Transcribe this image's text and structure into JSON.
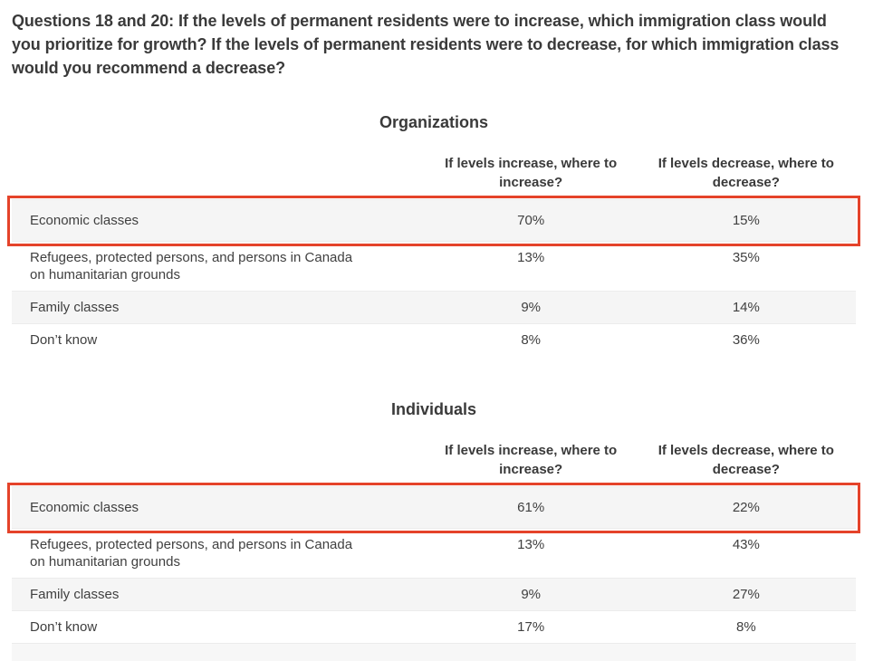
{
  "question_heading": "Questions 18 and 20: If the levels of permanent residents were to increase, which immigration class would you prioritize for growth? If the levels of permanent residents were to decrease, for which immigration class would you recommend a decrease?",
  "column_headers": {
    "increase": "If levels increase, where to increase?",
    "decrease": "If levels decrease, where to decrease?"
  },
  "tables": [
    {
      "title": "Organizations",
      "rows": [
        {
          "label": "Economic classes",
          "increase": "70%",
          "decrease": "15%",
          "highlighted": true
        },
        {
          "label": "Refugees, protected persons, and persons in Canada on humanitarian grounds",
          "increase": "13%",
          "decrease": "35%",
          "highlighted": false
        },
        {
          "label": "Family classes",
          "increase": "9%",
          "decrease": "14%",
          "highlighted": false
        },
        {
          "label": "Don’t know",
          "increase": "8%",
          "decrease": "36%",
          "highlighted": false
        }
      ]
    },
    {
      "title": "Individuals",
      "rows": [
        {
          "label": "Economic classes",
          "increase": "61%",
          "decrease": "22%",
          "highlighted": true
        },
        {
          "label": "Refugees, protected persons, and persons in Canada on humanitarian grounds",
          "increase": "13%",
          "decrease": "43%",
          "highlighted": false
        },
        {
          "label": "Family classes",
          "increase": "9%",
          "decrease": "27%",
          "highlighted": false
        },
        {
          "label": "Don’t know",
          "increase": "17%",
          "decrease": "8%",
          "highlighted": false
        }
      ]
    }
  ],
  "colors": {
    "highlight_border": "#e5432a",
    "row_stripe": "#f5f5f5",
    "text": "#3d3d3d"
  }
}
